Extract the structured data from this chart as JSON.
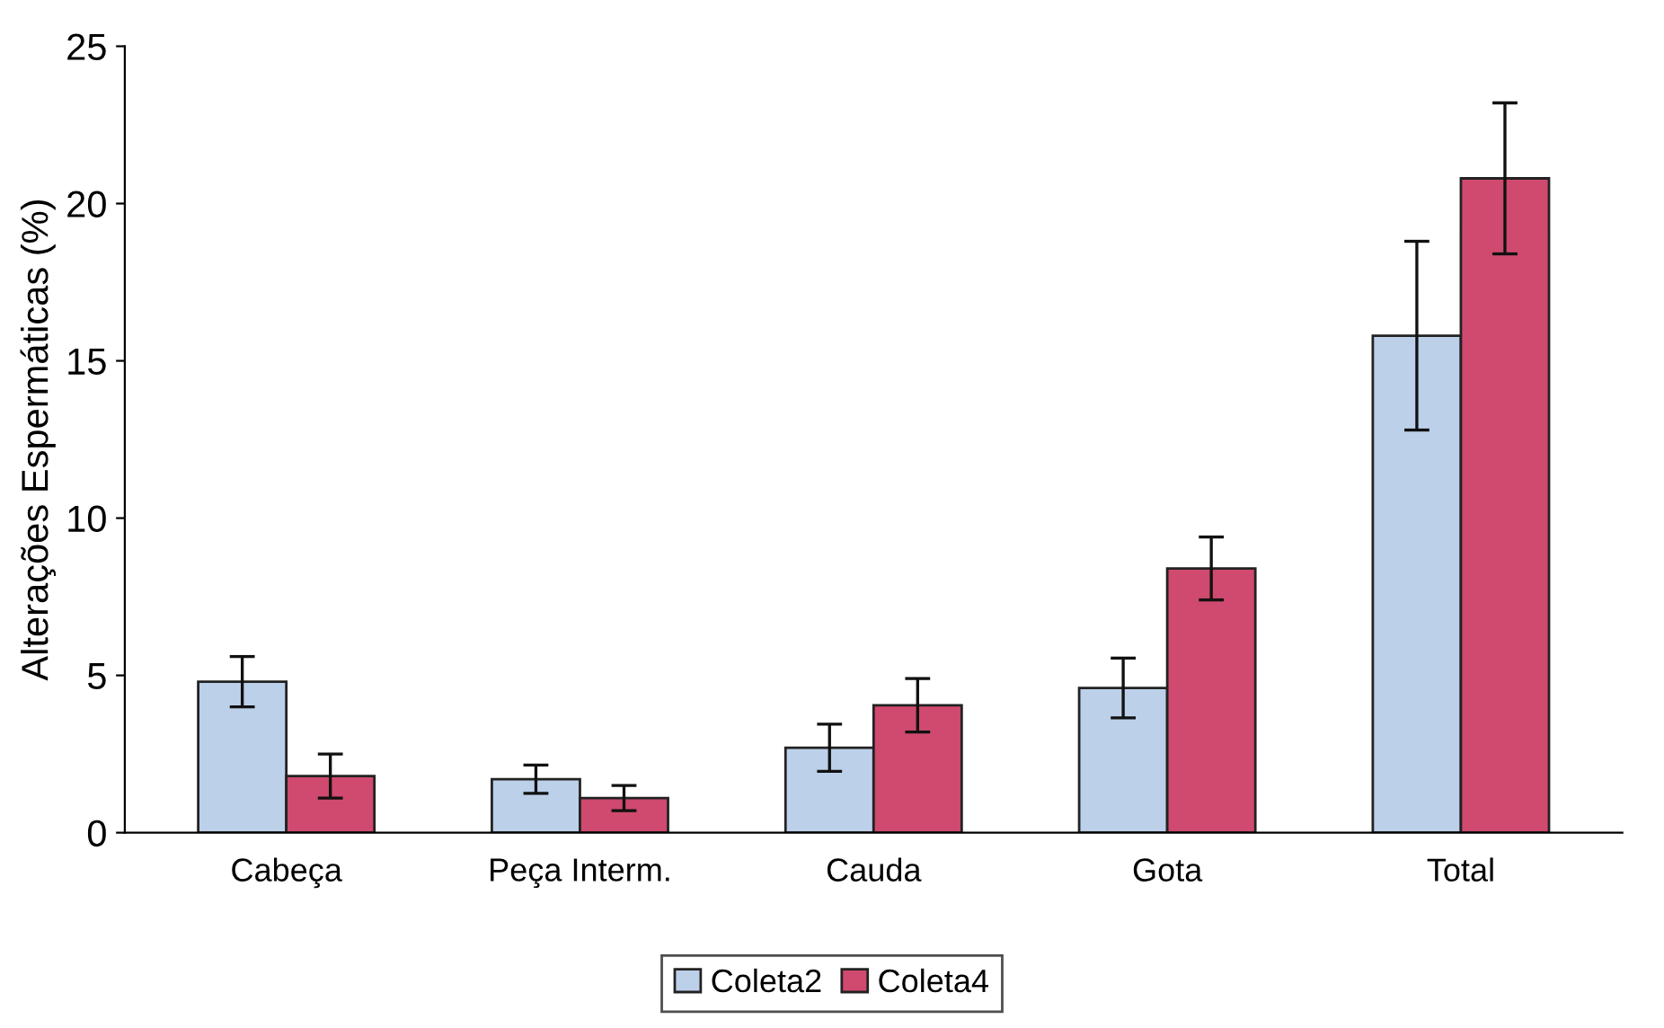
{
  "chart_data": {
    "type": "bar",
    "ylabel": "Alterações Espermáticas (%)",
    "categories": [
      "Cabeça",
      "Peça Interm.",
      "Cauda",
      "Gota",
      "Total"
    ],
    "series": [
      {
        "name": "Coleta2",
        "color": "#bcd0ea",
        "values": [
          4.8,
          1.7,
          2.7,
          4.6,
          15.8
        ],
        "errors": [
          0.8,
          0.45,
          0.75,
          0.95,
          3.0
        ]
      },
      {
        "name": "Coleta4",
        "color": "#cf4a6e",
        "values": [
          1.8,
          1.1,
          4.05,
          8.4,
          20.8
        ],
        "errors": [
          0.7,
          0.4,
          0.85,
          1.0,
          2.4
        ]
      }
    ],
    "ylim": [
      0,
      25
    ],
    "yticks": [
      0,
      5,
      10,
      15,
      20,
      25
    ],
    "grid": false,
    "legend": "bottom"
  }
}
